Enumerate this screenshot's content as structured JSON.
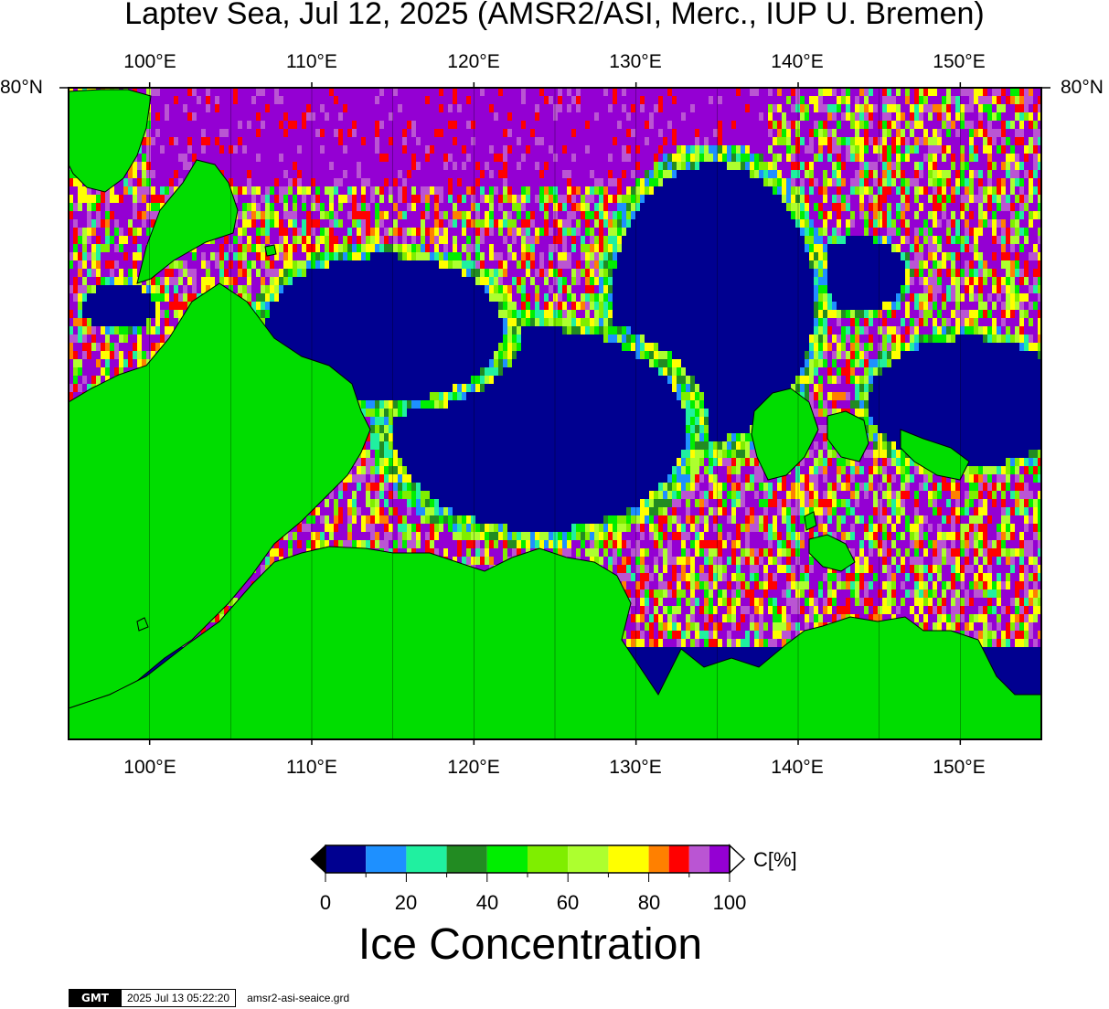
{
  "title": "Laptev Sea, Jul 12, 2025 (AMSR2/ASI, Merc., IUP U. Bremen)",
  "map": {
    "lon_ticks": [
      "100°E",
      "110°E",
      "120°E",
      "130°E",
      "140°E",
      "150°E"
    ],
    "lat_label": "80°N",
    "lon_range": [
      95,
      155
    ],
    "land_color": "#00dd00",
    "ocean_open_color": "#000090"
  },
  "colorbar": {
    "tick_labels": [
      "0",
      "20",
      "40",
      "60",
      "80",
      "100"
    ],
    "unit": "C[%]",
    "title": "Ice Concentration",
    "colors": [
      "#000090",
      "#1e90ff",
      "#20f0a0",
      "#228b22",
      "#00ee00",
      "#7fee00",
      "#adff2f",
      "#ffff00",
      "#ff8000",
      "#ff0000",
      "#ba55d3",
      "#9400d3"
    ],
    "under_color": "#000000",
    "over_color": "#ffffff"
  },
  "stamp": {
    "logo": "GMT",
    "timestamp": "2025 Jul 13 05:22:20",
    "filename": "amsr2-asi-seaice.grd"
  }
}
